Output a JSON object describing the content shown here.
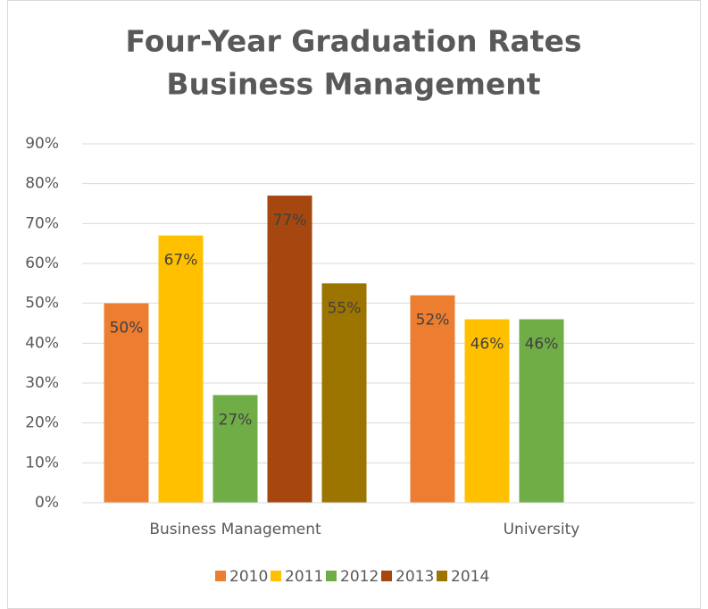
{
  "chart_data": {
    "type": "bar",
    "title": [
      "Four-Year Graduation Rates",
      "Business Management"
    ],
    "categories": [
      "Business Management",
      "University"
    ],
    "series": [
      {
        "name": "2010",
        "color": "#ed7d31",
        "values": [
          50,
          52
        ],
        "value_labels": [
          "50%",
          "52%"
        ]
      },
      {
        "name": "2011",
        "color": "#ffc000",
        "values": [
          67,
          46
        ],
        "value_labels": [
          "67%",
          "46%"
        ]
      },
      {
        "name": "2012",
        "color": "#70ad47",
        "values": [
          27,
          46
        ],
        "value_labels": [
          "27%",
          "46%"
        ]
      },
      {
        "name": "2013",
        "color": "#a5470f",
        "values": [
          77,
          null
        ],
        "value_labels": [
          "77%",
          null
        ]
      },
      {
        "name": "2014",
        "color": "#9c7400",
        "values": [
          55,
          null
        ],
        "value_labels": [
          "55%",
          null
        ]
      }
    ],
    "ylim": [
      0,
      90
    ],
    "yticks": [
      {
        "value": 0,
        "label": "0%"
      },
      {
        "value": 10,
        "label": "10%"
      },
      {
        "value": 20,
        "label": "20%"
      },
      {
        "value": 30,
        "label": "30%"
      },
      {
        "value": 40,
        "label": "40%"
      },
      {
        "value": 50,
        "label": "50%"
      },
      {
        "value": 60,
        "label": "60%"
      },
      {
        "value": 70,
        "label": "70%"
      },
      {
        "value": 80,
        "label": "80%"
      },
      {
        "value": 90,
        "label": "90%"
      }
    ],
    "grid": true,
    "legend": "bottom"
  }
}
